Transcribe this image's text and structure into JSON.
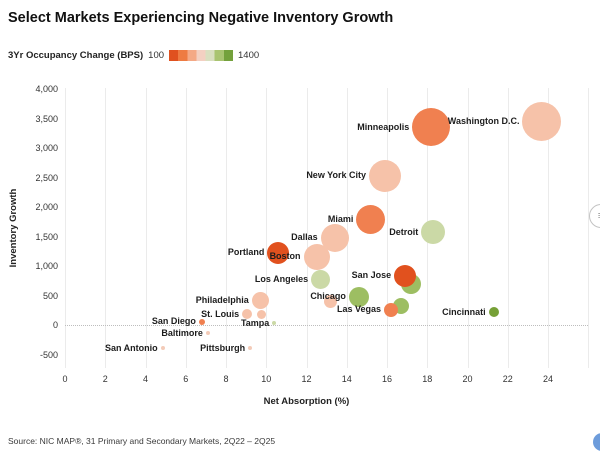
{
  "legend": {
    "label": "3Yr Occupancy Change (BPS)",
    "min_label": "100",
    "max_label": "1400",
    "gradient": [
      "#E0511F",
      "#EE7B42",
      "#F4A986",
      "#F3D0C2",
      "#D9DFC0",
      "#A9C471",
      "#74A13C"
    ]
  },
  "footer": "Source: NIC MAP®, 31 Primary and Secondary Markets, 2Q22 – 2Q25",
  "icons": {
    "menu_glyph": "≡"
  },
  "chart_data": {
    "type": "scatter",
    "title": "Select Markets Experiencing Negative Inventory Growth",
    "xlabel": "Net Absorption (%)",
    "ylabel": "Inventory Growth",
    "xlim": [
      0,
      24
    ],
    "ylim": [
      -500,
      4000
    ],
    "grid": "vertical-only",
    "zero_line": "dotted",
    "legend_position": "top-left",
    "x_ticks": [
      0,
      2,
      4,
      6,
      8,
      10,
      12,
      14,
      16,
      18,
      20,
      22,
      24
    ],
    "y_ticks": [
      {
        "value": 4000,
        "label": "4,000"
      },
      {
        "value": 3500,
        "label": "3,500"
      },
      {
        "value": 3000,
        "label": "3,000"
      },
      {
        "value": 2500,
        "label": "2,500"
      },
      {
        "value": 2000,
        "label": "2,000"
      },
      {
        "value": 1500,
        "label": "1,500"
      },
      {
        "value": 1000,
        "label": "1,000"
      },
      {
        "value": 500,
        "label": "500"
      },
      {
        "value": 0,
        "label": "0"
      },
      {
        "value": -500,
        "label": "-500"
      }
    ],
    "points": [
      {
        "label": "Washington D.C.",
        "x": 23.7,
        "y": 3450,
        "r": 19.5,
        "color": "#F6C2A9"
      },
      {
        "label": "Minneapolis",
        "x": 18.2,
        "y": 3350,
        "r": 19,
        "color": "#F08050"
      },
      {
        "label": "New York City",
        "x": 15.9,
        "y": 2530,
        "r": 16,
        "color": "#F6C2A9"
      },
      {
        "label": "Miami",
        "x": 15.2,
        "y": 1780,
        "r": 14.5,
        "color": "#F08050"
      },
      {
        "label": "Detroit",
        "x": 18.3,
        "y": 1570,
        "r": 12,
        "color": "#CBD9A6"
      },
      {
        "label": "Dallas",
        "x": 13.4,
        "y": 1475,
        "r": 14,
        "color": "#F6C2A9"
      },
      {
        "label": "Boston",
        "x": 12.5,
        "y": 1160,
        "r": 13,
        "color": "#F6C2A9"
      },
      {
        "label": "Portland",
        "x": 10.6,
        "y": 1225,
        "r": 11,
        "color": "#E1511E"
      },
      {
        "label": "Los Angeles",
        "x": 12.7,
        "y": 770,
        "r": 9.5,
        "color": "#CBD9A6"
      },
      {
        "label": "",
        "x": 17.2,
        "y": 690,
        "r": 10,
        "color": "#9DBE62"
      },
      {
        "label": "San Jose",
        "x": 16.9,
        "y": 835,
        "r": 11,
        "color": "#E1511E"
      },
      {
        "label": "",
        "x": 13.2,
        "y": 405,
        "r": 6.5,
        "color": "#F6C2A9"
      },
      {
        "label": "Chicago",
        "x": 14.6,
        "y": 480,
        "r": 10,
        "color": "#9DBE62"
      },
      {
        "label": "",
        "x": 16.7,
        "y": 315,
        "r": 8,
        "color": "#9DBE62"
      },
      {
        "label": "Las Vegas",
        "x": 16.2,
        "y": 255,
        "r": 7,
        "color": "#F08050"
      },
      {
        "label": "Cincinnati",
        "x": 21.3,
        "y": 215,
        "r": 5,
        "color": "#76A037"
      },
      {
        "label": "Philadelphia",
        "x": 9.7,
        "y": 415,
        "r": 8.5,
        "color": "#F6C2A9"
      },
      {
        "label": "",
        "x": 9.75,
        "y": 180,
        "r": 4.5,
        "color": "#F6C2A9"
      },
      {
        "label": "St. Louis",
        "x": 9.05,
        "y": 185,
        "r": 5,
        "color": "#F6C2A9"
      },
      {
        "label": "San Diego",
        "x": 6.8,
        "y": 55,
        "r": 3,
        "color": "#F08050"
      },
      {
        "label": "Tampa",
        "x": 10.4,
        "y": 30,
        "r": 2,
        "color": "#CBD9A6"
      },
      {
        "label": "Baltimore",
        "x": 7.1,
        "y": -140,
        "r": 2,
        "color": "#F3CBB8"
      },
      {
        "label": "San Antonio",
        "x": 4.85,
        "y": -395,
        "r": 2,
        "color": "#F3CBB8"
      },
      {
        "label": "Pittsburgh",
        "x": 9.2,
        "y": -395,
        "r": 2,
        "color": "#F3CBB8"
      }
    ]
  }
}
